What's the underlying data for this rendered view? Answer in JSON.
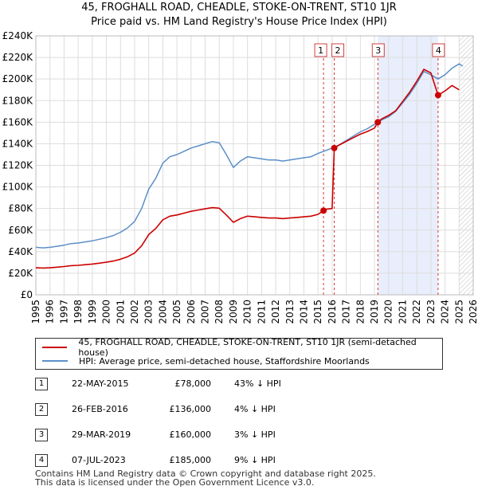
{
  "title_line1": "45, FROGHALL ROAD, CHEADLE, STOKE-ON-TRENT, ST10 1JR",
  "title_line2": "Price paid vs. HM Land Registry's House Price Index (HPI)",
  "colors": {
    "price_paid": "#cc0000",
    "hpi": "#5b8fc9",
    "shade": "#e8eefb",
    "marker_line": "#dd3333"
  },
  "legend": {
    "price_paid_label": "45, FROGHALL ROAD, CHEADLE, STOKE-ON-TRENT, ST10 1JR (semi-detached house)",
    "hpi_label": "HPI: Average price, semi-detached house, Staffordshire Moorlands"
  },
  "sales": [
    {
      "num": "1",
      "date": "22-MAY-2015",
      "price": "£78,000",
      "hpi_diff": "43% ↓ HPI"
    },
    {
      "num": "2",
      "date": "26-FEB-2016",
      "price": "£136,000",
      "hpi_diff": "4% ↓ HPI"
    },
    {
      "num": "3",
      "date": "29-MAR-2019",
      "price": "£160,000",
      "hpi_diff": "3% ↓ HPI"
    },
    {
      "num": "4",
      "date": "07-JUL-2023",
      "price": "£185,000",
      "hpi_diff": "9% ↓ HPI"
    }
  ],
  "footer": {
    "line1": "Contains HM Land Registry data © Crown copyright and database right 2025.",
    "line2": "This data is licensed under the Open Government Licence v3.0."
  },
  "chart_data": {
    "type": "line",
    "title": "45, FROGHALL ROAD, CHEADLE, STOKE-ON-TRENT, ST10 1JR",
    "subtitle": "Price paid vs. HM Land Registry's House Price Index (HPI)",
    "xlabel": "",
    "ylabel": "",
    "xlim": [
      1995,
      2026
    ],
    "ylim": [
      0,
      240000
    ],
    "x_ticks": [
      1995,
      1996,
      1997,
      1998,
      1999,
      2000,
      2001,
      2002,
      2003,
      2004,
      2005,
      2006,
      2007,
      2008,
      2009,
      2010,
      2011,
      2012,
      2013,
      2014,
      2015,
      2016,
      2017,
      2018,
      2019,
      2020,
      2021,
      2022,
      2023,
      2024,
      2025,
      2026
    ],
    "y_ticks": [
      0,
      20000,
      40000,
      60000,
      80000,
      100000,
      120000,
      140000,
      160000,
      180000,
      200000,
      220000,
      240000
    ],
    "y_tick_labels": [
      "£0",
      "£20K",
      "£40K",
      "£60K",
      "£80K",
      "£100K",
      "£120K",
      "£140K",
      "£160K",
      "£180K",
      "£200K",
      "£220K",
      "£240K"
    ],
    "grid": true,
    "shaded_region": [
      2019.24,
      2023.51
    ],
    "future_hatch_from": 2025.0,
    "series": [
      {
        "name": "HPI: Average price, semi-detached house, Staffordshire Moorlands",
        "x": [
          1995.0,
          1995.5,
          1996.0,
          1996.5,
          1997.0,
          1997.5,
          1998.0,
          1998.5,
          1999.0,
          1999.5,
          2000.0,
          2000.5,
          2001.0,
          2001.5,
          2002.0,
          2002.5,
          2003.0,
          2003.5,
          2004.0,
          2004.5,
          2005.0,
          2005.5,
          2006.0,
          2006.5,
          2007.0,
          2007.5,
          2008.0,
          2008.5,
          2009.0,
          2009.5,
          2010.0,
          2010.5,
          2011.0,
          2011.5,
          2012.0,
          2012.5,
          2013.0,
          2013.5,
          2014.0,
          2014.5,
          2015.0,
          2015.4,
          2016.0,
          2016.5,
          2017.0,
          2017.5,
          2018.0,
          2018.5,
          2019.0,
          2019.5,
          2020.0,
          2020.5,
          2021.0,
          2021.5,
          2022.0,
          2022.5,
          2023.0,
          2023.5,
          2024.0,
          2024.5,
          2025.0,
          2025.25
        ],
        "values": [
          44000,
          43500,
          44000,
          45000,
          46000,
          47500,
          48000,
          49000,
          50000,
          51500,
          53000,
          55000,
          58000,
          62000,
          68000,
          80000,
          98000,
          108000,
          122000,
          128000,
          130000,
          133000,
          136000,
          138000,
          140000,
          142000,
          141000,
          130000,
          118000,
          124000,
          128000,
          127000,
          126000,
          125000,
          125000,
          124000,
          125000,
          126000,
          127000,
          128000,
          131000,
          133000,
          136000,
          139000,
          143000,
          147000,
          151000,
          154000,
          158000,
          162000,
          165000,
          170000,
          178000,
          186000,
          196000,
          207000,
          204000,
          200000,
          204000,
          210000,
          214000,
          212000
        ]
      },
      {
        "name": "45, FROGHALL ROAD, CHEADLE, STOKE-ON-TRENT, ST10 1JR (semi-detached house)",
        "x": [
          1995.0,
          1995.5,
          1996.0,
          1996.5,
          1997.0,
          1997.5,
          1998.0,
          1998.5,
          1999.0,
          1999.5,
          2000.0,
          2000.5,
          2001.0,
          2001.5,
          2002.0,
          2002.5,
          2003.0,
          2003.5,
          2004.0,
          2004.5,
          2005.0,
          2005.5,
          2006.0,
          2006.5,
          2007.0,
          2007.5,
          2008.0,
          2008.5,
          2009.0,
          2009.5,
          2010.0,
          2010.5,
          2011.0,
          2011.5,
          2012.0,
          2012.5,
          2013.0,
          2013.5,
          2014.0,
          2014.5,
          2015.0,
          2015.39,
          2015.5,
          2016.0,
          2016.15,
          2016.5,
          2017.0,
          2017.5,
          2018.0,
          2018.5,
          2019.0,
          2019.24,
          2019.5,
          2020.0,
          2020.5,
          2021.0,
          2021.5,
          2022.0,
          2022.5,
          2023.0,
          2023.51,
          2024.0,
          2024.5,
          2025.0
        ],
        "values": [
          25000,
          24800,
          25000,
          25600,
          26200,
          27000,
          27300,
          27900,
          28500,
          29300,
          30200,
          31300,
          33000,
          35300,
          38700,
          45500,
          55800,
          61500,
          69500,
          72900,
          74000,
          75700,
          77400,
          78600,
          79700,
          80800,
          80300,
          74000,
          67200,
          70600,
          72900,
          72300,
          71700,
          71200,
          71200,
          70600,
          71200,
          71700,
          72300,
          72900,
          74600,
          78000,
          79200,
          80000,
          136000,
          138800,
          142200,
          145600,
          148900,
          151400,
          154500,
          160000,
          163000,
          166200,
          170500,
          179200,
          187900,
          198000,
          209000,
          205600,
          185000,
          189000,
          194000,
          190000
        ]
      }
    ],
    "sales": [
      {
        "label": "1",
        "x": 2015.39,
        "value": 78000
      },
      {
        "label": "2",
        "x": 2016.15,
        "value": 136000
      },
      {
        "label": "3",
        "x": 2019.24,
        "value": 160000
      },
      {
        "label": "4",
        "x": 2023.51,
        "value": 185000
      }
    ]
  }
}
